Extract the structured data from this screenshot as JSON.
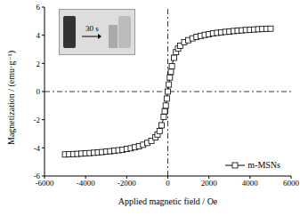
{
  "chart_data": {
    "type": "line",
    "x_label": "Applied magnetic field / Oe",
    "y_label": "Magnetization / (emu·g⁻¹)",
    "annotations": [
      "30 s"
    ],
    "x": [
      -5000,
      -4800,
      -4600,
      -4400,
      -4200,
      -4000,
      -3800,
      -3600,
      -3400,
      -3200,
      -3000,
      -2800,
      -2600,
      -2400,
      -2200,
      -2000,
      -1800,
      -1600,
      -1400,
      -1200,
      -1000,
      -800,
      -600,
      -500,
      -400,
      -300,
      -200,
      -150,
      -100,
      -50,
      0,
      50,
      100,
      150,
      200,
      300,
      400,
      500,
      600,
      800,
      1000,
      1200,
      1400,
      1600,
      1800,
      2000,
      2200,
      2400,
      2600,
      2800,
      3000,
      3200,
      3400,
      3600,
      3800,
      4000,
      4200,
      4400,
      4600,
      4800,
      5000
    ],
    "series": [
      {
        "name": "m-MSNs",
        "color": "#000000",
        "marker": "square",
        "line_style": "solid",
        "values": [
          -4.47,
          -4.46,
          -4.44,
          -4.43,
          -4.41,
          -4.39,
          -4.37,
          -4.35,
          -4.32,
          -4.3,
          -4.27,
          -4.24,
          -4.21,
          -4.17,
          -4.13,
          -4.08,
          -4.03,
          -3.96,
          -3.88,
          -3.78,
          -3.65,
          -3.5,
          -3.25,
          -3.05,
          -2.8,
          -2.4,
          -1.8,
          -1.4,
          -1.0,
          -0.5,
          0,
          0.5,
          1.0,
          1.4,
          1.8,
          2.4,
          2.8,
          3.05,
          3.25,
          3.5,
          3.65,
          3.78,
          3.88,
          3.96,
          4.03,
          4.08,
          4.13,
          4.17,
          4.21,
          4.24,
          4.27,
          4.3,
          4.32,
          4.35,
          4.37,
          4.39,
          4.41,
          4.43,
          4.44,
          4.46,
          4.47
        ]
      }
    ],
    "xlim": [
      -6000,
      6000
    ],
    "ylim": [
      -6,
      6
    ],
    "xticks": [
      -6000,
      -4000,
      -2000,
      0,
      2000,
      4000,
      6000
    ],
    "yticks": [
      -6,
      -4,
      -2,
      0,
      2,
      4,
      6
    ],
    "reference_lines": {
      "x": [
        0
      ],
      "y": [
        0
      ]
    },
    "legend": "lower right",
    "grid": false
  }
}
